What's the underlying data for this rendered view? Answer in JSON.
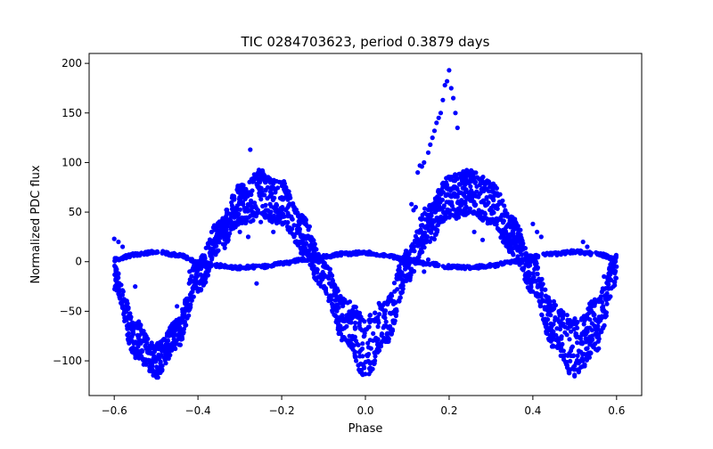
{
  "chart_data": {
    "type": "scatter",
    "title": "TIC 0284703623, period 0.3879 days",
    "xlabel": "Phase",
    "ylabel": "Normalized PDC flux",
    "xlim": [
      -0.66,
      0.66
    ],
    "ylim": [
      -135,
      210
    ],
    "x_ticks": [
      -0.6,
      -0.4,
      -0.2,
      0.0,
      0.2,
      0.4,
      0.6
    ],
    "x_tick_labels": [
      "−0.6",
      "−0.4",
      "−0.2",
      "0.0",
      "0.2",
      "0.4",
      "0.6"
    ],
    "y_ticks": [
      -100,
      -50,
      0,
      50,
      100,
      150,
      200
    ],
    "y_tick_labels": [
      "−100",
      "−50",
      "0",
      "50",
      "100",
      "150",
      "200"
    ],
    "grid": false,
    "marker_color": "#0000ff",
    "main_curve_envelope": {
      "description_units": "phase vs flux",
      "x": [
        -0.6,
        -0.55,
        -0.5,
        -0.45,
        -0.4,
        -0.35,
        -0.3,
        -0.25,
        -0.2,
        -0.15,
        -0.1,
        -0.05,
        0.0,
        0.05,
        0.1,
        0.15,
        0.2,
        0.25,
        0.3,
        0.35,
        0.4,
        0.45,
        0.5,
        0.55,
        0.6
      ],
      "upper": [
        -5,
        -60,
        -85,
        -60,
        0,
        40,
        75,
        90,
        80,
        45,
        0,
        -40,
        -55,
        -40,
        10,
        55,
        85,
        90,
        80,
        45,
        0,
        -45,
        -60,
        -40,
        5
      ],
      "lower": [
        -25,
        -95,
        -115,
        -85,
        -30,
        10,
        40,
        45,
        40,
        10,
        -30,
        -80,
        -115,
        -80,
        -20,
        20,
        45,
        50,
        40,
        10,
        -30,
        -85,
        -115,
        -90,
        -20
      ]
    },
    "secondary_curve": {
      "x": [
        -0.6,
        -0.55,
        -0.5,
        -0.45,
        -0.4,
        -0.35,
        -0.3,
        -0.25,
        -0.2,
        -0.15,
        -0.1,
        -0.05,
        0.0,
        0.05,
        0.1,
        0.15,
        0.2,
        0.25,
        0.3,
        0.35,
        0.4,
        0.45,
        0.5,
        0.55,
        0.6
      ],
      "y": [
        2,
        7,
        10,
        7,
        0,
        -4,
        -6,
        -5,
        -2,
        2,
        5,
        8,
        9,
        6,
        2,
        -2,
        -5,
        -6,
        -4,
        0,
        5,
        8,
        10,
        8,
        3
      ]
    },
    "flare_points": [
      {
        "x": 0.14,
        "y": 100
      },
      {
        "x": 0.15,
        "y": 110
      },
      {
        "x": 0.155,
        "y": 118
      },
      {
        "x": 0.16,
        "y": 125
      },
      {
        "x": 0.165,
        "y": 132
      },
      {
        "x": 0.17,
        "y": 140
      },
      {
        "x": 0.175,
        "y": 145
      },
      {
        "x": 0.18,
        "y": 150
      },
      {
        "x": 0.185,
        "y": 163
      },
      {
        "x": 0.19,
        "y": 178
      },
      {
        "x": 0.195,
        "y": 182
      },
      {
        "x": 0.2,
        "y": 193
      },
      {
        "x": 0.205,
        "y": 175
      },
      {
        "x": 0.21,
        "y": 165
      },
      {
        "x": 0.215,
        "y": 150
      },
      {
        "x": 0.22,
        "y": 135
      },
      {
        "x": 0.13,
        "y": 97
      },
      {
        "x": 0.135,
        "y": 96
      },
      {
        "x": 0.125,
        "y": 90
      },
      {
        "x": 0.11,
        "y": 58
      },
      {
        "x": 0.12,
        "y": 55
      },
      {
        "x": 0.115,
        "y": 52
      }
    ],
    "outlier_points": [
      {
        "x": -0.275,
        "y": 113
      },
      {
        "x": -0.25,
        "y": 40
      },
      {
        "x": -0.24,
        "y": 45
      },
      {
        "x": -0.22,
        "y": 30
      },
      {
        "x": -0.26,
        "y": -22
      },
      {
        "x": -0.3,
        "y": 30
      },
      {
        "x": -0.28,
        "y": 25
      },
      {
        "x": 0.14,
        "y": -10
      },
      {
        "x": 0.15,
        "y": 2
      },
      {
        "x": 0.33,
        "y": 25
      },
      {
        "x": 0.32,
        "y": 32
      },
      {
        "x": 0.26,
        "y": 30
      },
      {
        "x": 0.28,
        "y": 22
      },
      {
        "x": 0.4,
        "y": 38
      },
      {
        "x": 0.41,
        "y": 30
      },
      {
        "x": 0.42,
        "y": 25
      },
      {
        "x": 0.52,
        "y": 20
      },
      {
        "x": 0.53,
        "y": 15
      },
      {
        "x": -0.58,
        "y": 15
      },
      {
        "x": -0.59,
        "y": 20
      },
      {
        "x": -0.6,
        "y": 23
      },
      {
        "x": 0.59,
        "y": 0
      },
      {
        "x": 0.6,
        "y": -5
      },
      {
        "x": -0.05,
        "y": -60
      },
      {
        "x": 0.05,
        "y": -65
      },
      {
        "x": -0.45,
        "y": -45
      },
      {
        "x": -0.55,
        "y": -25
      },
      {
        "x": 0.45,
        "y": -40
      },
      {
        "x": 0.57,
        "y": -15
      },
      {
        "x": -0.42,
        "y": -10
      }
    ]
  }
}
